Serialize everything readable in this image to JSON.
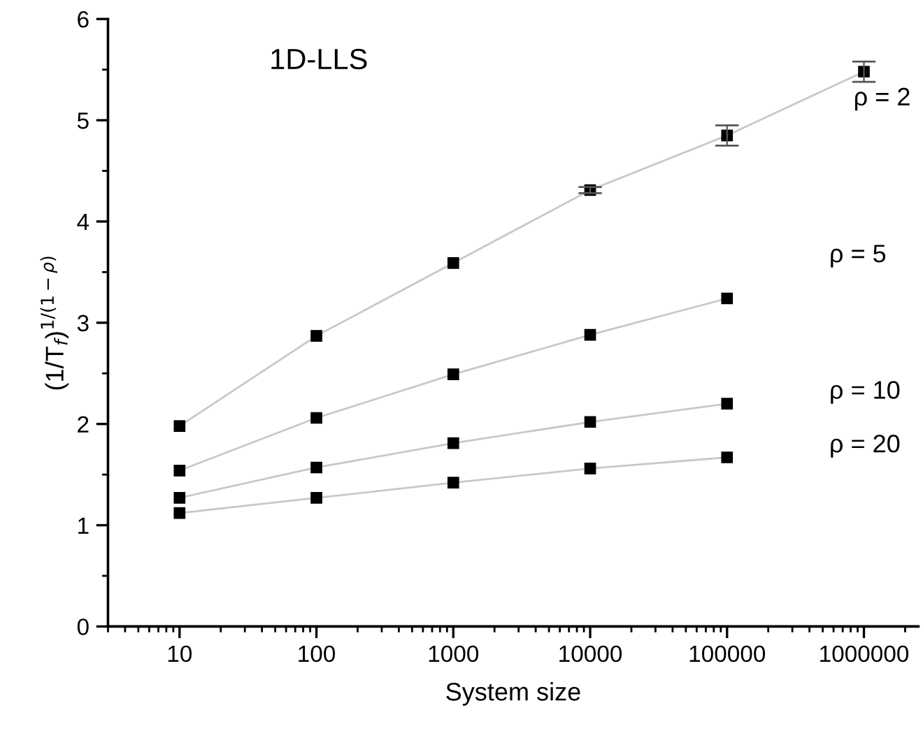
{
  "chart_data": {
    "type": "line",
    "title": "1D-LLS",
    "xlabel": "System size",
    "ylabel": "(1/T$_{f}$)$^{1/(1−ρ)}$",
    "log": "x",
    "xlim": [
      3,
      2500000
    ],
    "xticks": [
      10,
      100,
      1000,
      10000,
      100000,
      1000000
    ],
    "ylim": [
      0,
      6
    ],
    "yticks": [
      0,
      1,
      2,
      3,
      4,
      5,
      6
    ],
    "marker": "square",
    "line_style": "solid",
    "grid": false,
    "legend": false,
    "x": [
      10,
      100,
      1000,
      10000,
      100000,
      1000000
    ],
    "series": [
      {
        "name": "ρ = 2",
        "color": "#c8c8c8",
        "values": [
          1.98,
          2.87,
          3.59,
          4.31,
          4.85,
          5.48
        ],
        "errors": [
          null,
          null,
          null,
          0.03,
          0.1,
          0.1
        ]
      },
      {
        "name": "ρ = 5",
        "color": "#c8c8c8",
        "values": [
          1.54,
          2.06,
          2.49,
          2.88,
          3.24,
          null
        ]
      },
      {
        "name": "ρ = 10",
        "color": "#c8c8c8",
        "values": [
          1.27,
          1.57,
          1.81,
          2.02,
          2.2,
          null
        ]
      },
      {
        "name": "ρ = 20",
        "color": "#c8c8c8",
        "values": [
          1.12,
          1.27,
          1.42,
          1.56,
          1.67,
          null
        ]
      }
    ]
  }
}
